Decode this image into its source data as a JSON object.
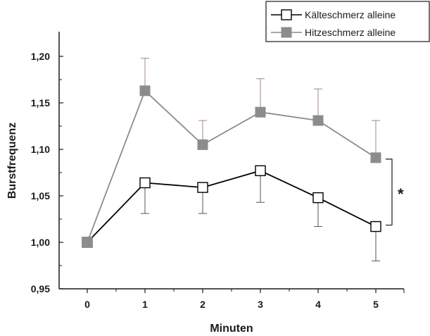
{
  "chart_data": {
    "type": "line",
    "xlabel": "Minuten",
    "ylabel": "Burstfrequenz",
    "x": [
      0,
      1,
      2,
      3,
      4,
      5
    ],
    "x_tick_labels": [
      "0",
      "1",
      "2",
      "3",
      "4",
      "5"
    ],
    "ylim": [
      0.95,
      1.23
    ],
    "y_ticks": [
      0.95,
      1.0,
      1.05,
      1.1,
      1.15,
      1.2
    ],
    "y_tick_labels": [
      "0,95",
      "1,00",
      "1,05",
      "1,10",
      "1,15",
      "1,20"
    ],
    "grid": false,
    "legend_position": "top-right",
    "series": [
      {
        "name": "Kälteschmerz alleine",
        "marker": "open-square",
        "color": "#000000",
        "values": [
          1.0,
          1.064,
          1.059,
          1.077,
          1.048,
          1.017
        ],
        "error_lower": [
          null,
          1.031,
          1.031,
          1.043,
          1.017,
          0.98
        ],
        "error_upper": [
          null,
          null,
          null,
          null,
          null,
          null
        ]
      },
      {
        "name": "Hitzeschmerz alleine",
        "marker": "filled-square",
        "color": "#8c8c8c",
        "values": [
          1.0,
          1.163,
          1.105,
          1.14,
          1.131,
          1.091
        ],
        "error_lower": [
          null,
          null,
          null,
          null,
          null,
          null
        ],
        "error_upper": [
          null,
          1.198,
          1.131,
          1.176,
          1.165,
          1.131
        ]
      }
    ],
    "annotations": [
      {
        "text": "*",
        "meaning": "significance bracket",
        "y_from": 1.017,
        "y_to": 1.091
      }
    ]
  }
}
